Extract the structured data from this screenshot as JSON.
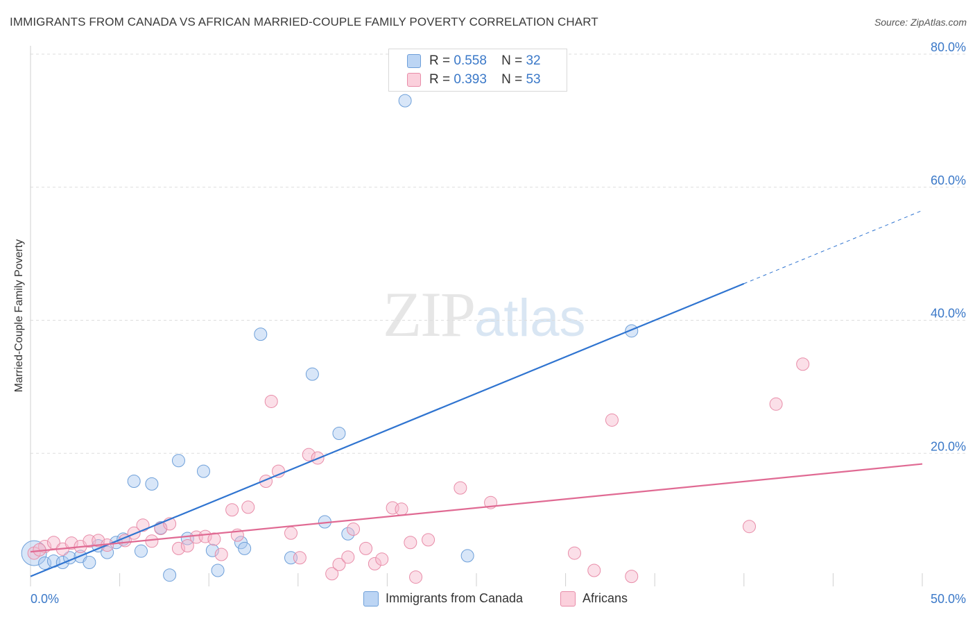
{
  "title": "IMMIGRANTS FROM CANADA VS AFRICAN MARRIED-COUPLE FAMILY POVERTY CORRELATION CHART",
  "source": "Source: ZipAtlas.com",
  "watermark": {
    "zip": "ZIP",
    "atlas": "atlas"
  },
  "legend": {
    "rows": [
      {
        "r_label": "R =",
        "r_value": "0.558",
        "n_label": "N =",
        "n_value": "32"
      },
      {
        "r_label": "R =",
        "r_value": "0.393",
        "n_label": "N =",
        "n_value": "53"
      }
    ]
  },
  "colors": {
    "blue_fill": "#a9c8ef",
    "blue_stroke": "#6d9fd9",
    "blue_line": "#2f74d0",
    "pink_fill": "#f6b8cb",
    "pink_stroke": "#e88ca8",
    "pink_line": "#e06a93",
    "grid": "#dddddd",
    "tick": "#3a78c8"
  },
  "chart_data": {
    "type": "scatter",
    "title": "IMMIGRANTS FROM CANADA VS AFRICAN MARRIED-COUPLE FAMILY POVERTY CORRELATION CHART",
    "xlabel": "",
    "ylabel": "Married-Couple Family Poverty",
    "xlim": [
      0,
      50
    ],
    "ylim": [
      0,
      80
    ],
    "x_tick_labels": [
      "0.0%",
      "50.0%"
    ],
    "y_tick_values": [
      20,
      40,
      60,
      80
    ],
    "y_tick_labels": [
      "20.0%",
      "40.0%",
      "60.0%",
      "80.0%"
    ],
    "series": [
      {
        "name": "Immigrants from Canada",
        "color_key": "blue",
        "r": 0.558,
        "n": 32,
        "trend": {
          "x0": 0,
          "y0": 1.5,
          "x1": 40,
          "y1": 45.5,
          "dash_to_x": 50,
          "dash_to_y": 56.5
        },
        "points": [
          [
            0.2,
            5.0,
            18
          ],
          [
            0.8,
            3.5,
            9
          ],
          [
            1.3,
            3.8,
            9
          ],
          [
            1.8,
            3.6,
            9
          ],
          [
            2.2,
            4.3,
            9
          ],
          [
            2.8,
            4.5,
            9
          ],
          [
            3.3,
            3.6,
            9
          ],
          [
            3.8,
            6.1,
            9
          ],
          [
            4.3,
            5.1,
            9
          ],
          [
            4.8,
            6.6,
            9
          ],
          [
            5.2,
            7.1,
            9
          ],
          [
            5.8,
            15.8,
            9
          ],
          [
            6.2,
            5.3,
            9
          ],
          [
            6.8,
            15.4,
            9
          ],
          [
            7.3,
            8.8,
            9
          ],
          [
            7.8,
            1.7,
            9
          ],
          [
            8.3,
            18.9,
            9
          ],
          [
            8.8,
            7.2,
            9
          ],
          [
            9.7,
            17.3,
            9
          ],
          [
            10.2,
            5.4,
            9
          ],
          [
            10.5,
            2.4,
            9
          ],
          [
            11.8,
            6.6,
            9
          ],
          [
            12.0,
            5.7,
            9
          ],
          [
            12.9,
            37.9,
            9
          ],
          [
            14.6,
            4.3,
            9
          ],
          [
            15.8,
            31.9,
            9
          ],
          [
            16.5,
            9.7,
            9
          ],
          [
            17.3,
            23.0,
            9
          ],
          [
            17.8,
            7.9,
            9
          ],
          [
            21.0,
            73.0,
            9
          ],
          [
            24.5,
            4.6,
            9
          ],
          [
            33.7,
            38.4,
            9
          ]
        ]
      },
      {
        "name": "Africans",
        "color_key": "pink",
        "r": 0.393,
        "n": 53,
        "trend": {
          "x0": 0,
          "y0": 5.2,
          "x1": 50,
          "y1": 18.4
        },
        "points": [
          [
            0.2,
            5.0,
            9
          ],
          [
            0.8,
            6.0,
            9
          ],
          [
            1.3,
            6.6,
            9
          ],
          [
            1.8,
            5.6,
            9
          ],
          [
            2.3,
            6.5,
            9
          ],
          [
            2.8,
            6.0,
            9
          ],
          [
            3.3,
            6.8,
            9
          ],
          [
            3.8,
            6.9,
            9
          ],
          [
            4.3,
            6.2,
            9
          ],
          [
            5.3,
            6.9,
            9
          ],
          [
            5.8,
            8.0,
            9
          ],
          [
            6.3,
            9.2,
            9
          ],
          [
            6.8,
            6.8,
            9
          ],
          [
            7.3,
            8.7,
            9
          ],
          [
            7.8,
            9.4,
            9
          ],
          [
            8.3,
            5.7,
            9
          ],
          [
            8.8,
            6.1,
            9
          ],
          [
            9.3,
            7.4,
            9
          ],
          [
            9.8,
            7.5,
            9
          ],
          [
            10.3,
            7.1,
            9
          ],
          [
            10.7,
            4.8,
            9
          ],
          [
            11.3,
            11.5,
            9
          ],
          [
            11.6,
            7.7,
            9
          ],
          [
            12.2,
            11.9,
            9
          ],
          [
            13.2,
            15.8,
            9
          ],
          [
            13.5,
            27.8,
            9
          ],
          [
            13.9,
            17.3,
            9
          ],
          [
            14.6,
            8.0,
            9
          ],
          [
            15.1,
            4.3,
            9
          ],
          [
            15.6,
            19.8,
            9
          ],
          [
            16.1,
            19.3,
            9
          ],
          [
            16.9,
            1.9,
            9
          ],
          [
            17.3,
            3.3,
            9
          ],
          [
            17.8,
            4.4,
            9
          ],
          [
            18.1,
            8.6,
            9
          ],
          [
            18.8,
            5.7,
            9
          ],
          [
            19.3,
            3.4,
            9
          ],
          [
            19.7,
            4.1,
            9
          ],
          [
            20.3,
            11.8,
            9
          ],
          [
            20.8,
            11.6,
            9
          ],
          [
            21.3,
            6.6,
            9
          ],
          [
            21.6,
            1.4,
            9
          ],
          [
            22.3,
            7.0,
            9
          ],
          [
            24.1,
            14.8,
            9
          ],
          [
            25.8,
            12.6,
            9
          ],
          [
            30.5,
            5.0,
            9
          ],
          [
            31.6,
            2.4,
            9
          ],
          [
            32.6,
            25.0,
            9
          ],
          [
            33.7,
            1.5,
            9
          ],
          [
            40.3,
            9.0,
            9
          ],
          [
            41.8,
            27.4,
            9
          ],
          [
            43.3,
            33.4,
            9
          ],
          [
            0.5,
            5.5,
            9
          ]
        ]
      }
    ]
  }
}
